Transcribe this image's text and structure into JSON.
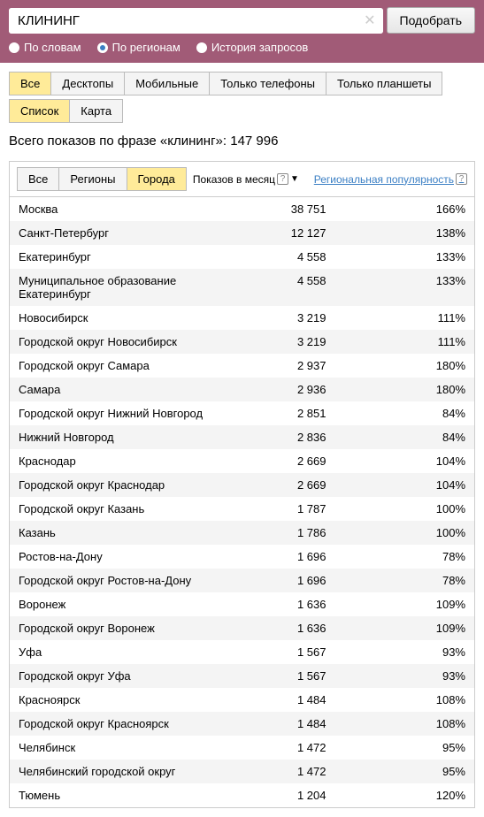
{
  "search": {
    "value": "КЛИНИНГ",
    "submit_label": "Подобрать"
  },
  "radios": {
    "by_words": "По словам",
    "by_regions": "По регионам",
    "history": "История запросов"
  },
  "tabs1": {
    "all": "Все",
    "desktops": "Десктопы",
    "mobile": "Мобильные",
    "phones": "Только телефоны",
    "tablets": "Только планшеты"
  },
  "tabs2": {
    "list": "Список",
    "map": "Карта"
  },
  "summary": "Всего показов по фразе «клининг»: 147 996",
  "filter_tabs": {
    "all": "Все",
    "regions": "Регионы",
    "cities": "Города"
  },
  "cols": {
    "impressions": "Показов в месяц",
    "popularity": "Региональная популярность"
  },
  "rows": [
    {
      "name": "Москва",
      "num": "38 751",
      "pct": "166%"
    },
    {
      "name": "Санкт-Петербург",
      "num": "12 127",
      "pct": "138%"
    },
    {
      "name": "Екатеринбург",
      "num": "4 558",
      "pct": "133%"
    },
    {
      "name": "Муниципальное образование Екатеринбург",
      "num": "4 558",
      "pct": "133%"
    },
    {
      "name": "Новосибирск",
      "num": "3 219",
      "pct": "111%"
    },
    {
      "name": "Городской округ Новосибирск",
      "num": "3 219",
      "pct": "111%"
    },
    {
      "name": "Городской округ Самара",
      "num": "2 937",
      "pct": "180%"
    },
    {
      "name": "Самара",
      "num": "2 936",
      "pct": "180%"
    },
    {
      "name": "Городской округ Нижний Новгород",
      "num": "2 851",
      "pct": "84%"
    },
    {
      "name": "Нижний Новгород",
      "num": "2 836",
      "pct": "84%"
    },
    {
      "name": "Краснодар",
      "num": "2 669",
      "pct": "104%"
    },
    {
      "name": "Городской округ Краснодар",
      "num": "2 669",
      "pct": "104%"
    },
    {
      "name": "Городской округ Казань",
      "num": "1 787",
      "pct": "100%"
    },
    {
      "name": "Казань",
      "num": "1 786",
      "pct": "100%"
    },
    {
      "name": "Ростов-на-Дону",
      "num": "1 696",
      "pct": "78%"
    },
    {
      "name": "Городской округ Ростов-на-Дону",
      "num": "1 696",
      "pct": "78%"
    },
    {
      "name": "Воронеж",
      "num": "1 636",
      "pct": "109%"
    },
    {
      "name": "Городской округ Воронеж",
      "num": "1 636",
      "pct": "109%"
    },
    {
      "name": "Уфа",
      "num": "1 567",
      "pct": "93%"
    },
    {
      "name": "Городской округ Уфа",
      "num": "1 567",
      "pct": "93%"
    },
    {
      "name": "Красноярск",
      "num": "1 484",
      "pct": "108%"
    },
    {
      "name": "Городской округ Красноярск",
      "num": "1 484",
      "pct": "108%"
    },
    {
      "name": "Челябинск",
      "num": "1 472",
      "pct": "95%"
    },
    {
      "name": "Челябинский городской округ",
      "num": "1 472",
      "pct": "95%"
    },
    {
      "name": "Тюмень",
      "num": "1 204",
      "pct": "120%"
    }
  ]
}
